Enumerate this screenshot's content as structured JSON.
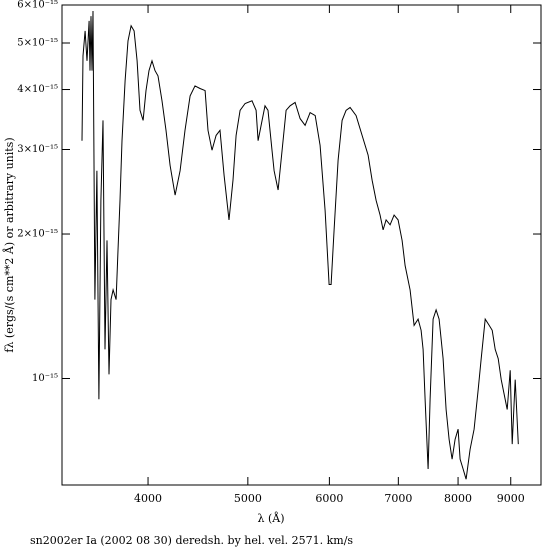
{
  "chart_data": {
    "type": "line",
    "caption": "sn2002er Ia (2002 08 30) deredsh. by hel. vel.  2571. km/s",
    "xlabel": "λ (Å)",
    "ylabel": "fλ (ergs/(s cm**2 Å) or arbitrary units)",
    "xlog": true,
    "ylog": true,
    "color": "#000000",
    "xlim": [
      3300,
      9630
    ],
    "ylim": [
      6e-16,
      6e-15
    ],
    "xticks": [
      4000,
      5000,
      6000,
      7000,
      8000,
      9000
    ],
    "yticks": [
      {
        "value": 1e-15,
        "label": "10⁻¹⁵"
      },
      {
        "value": 2e-15,
        "label": "2×10⁻¹⁵"
      },
      {
        "value": 3e-15,
        "label": "3×10⁻¹⁵"
      },
      {
        "value": 4e-15,
        "label": "4×10⁻¹⁵"
      },
      {
        "value": 5e-15,
        "label": "5×10⁻¹⁵"
      },
      {
        "value": 6e-15,
        "label": "6×10⁻¹⁵"
      }
    ],
    "x": [
      3451,
      3459,
      3475,
      3490,
      3506,
      3513,
      3521,
      3529,
      3537,
      3552,
      3568,
      3584,
      3600,
      3617,
      3633,
      3649,
      3666,
      3682,
      3699,
      3724,
      3740,
      3757,
      3774,
      3800,
      3825,
      3851,
      3877,
      3903,
      3929,
      3956,
      3982,
      4009,
      4036,
      4063,
      4090,
      4127,
      4164,
      4202,
      4249,
      4297,
      4345,
      4394,
      4443,
      4493,
      4544,
      4574,
      4615,
      4657,
      4698,
      4741,
      4794,
      4837,
      4870,
      4914,
      4969,
      5047,
      5093,
      5116,
      5162,
      5196,
      5231,
      5278,
      5302,
      5350,
      5398,
      5446,
      5495,
      5557,
      5620,
      5683,
      5747,
      5812,
      5877,
      5943,
      5996,
      6023,
      6064,
      6118,
      6173,
      6229,
      6284,
      6369,
      6455,
      6542,
      6601,
      6660,
      6720,
      6765,
      6811,
      6872,
      6934,
      6996,
      7059,
      7106,
      7186,
      7251,
      7316,
      7365,
      7398,
      7431,
      7482,
      7515,
      7566,
      7617,
      7668,
      7737,
      7789,
      7841,
      7894,
      7948,
      8001,
      8037,
      8091,
      8146,
      8219,
      8293,
      8368,
      8424,
      8500,
      8576,
      8634,
      8692,
      8751,
      8810,
      8870,
      8930,
      8990,
      9030,
      9091,
      9153
    ],
    "values": [
      3.13e-15,
      4.7e-15,
      5.3e-15,
      4.59e-15,
      5.56e-15,
      4.38e-15,
      5.69e-15,
      4.38e-15,
      5.83e-15,
      1.46e-15,
      2.71e-15,
      9.05e-16,
      2.35e-15,
      3.45e-15,
      1.15e-15,
      1.94e-15,
      1.02e-15,
      1.46e-15,
      1.53e-15,
      1.46e-15,
      1.85e-15,
      2.35e-15,
      3.13e-15,
      4.17e-15,
      5.05e-15,
      5.43e-15,
      5.3e-15,
      4.59e-15,
      3.62e-15,
      3.45e-15,
      3.98e-15,
      4.38e-15,
      4.59e-15,
      4.38e-15,
      4.27e-15,
      3.79e-15,
      3.29e-15,
      2.78e-15,
      2.41e-15,
      2.71e-15,
      3.29e-15,
      3.88e-15,
      4.07e-15,
      4.02e-15,
      3.98e-15,
      3.29e-15,
      2.99e-15,
      3.21e-15,
      3.29e-15,
      2.65e-15,
      2.14e-15,
      2.59e-15,
      3.21e-15,
      3.62e-15,
      3.74e-15,
      3.79e-15,
      3.62e-15,
      3.13e-15,
      3.45e-15,
      3.7e-15,
      3.62e-15,
      2.99e-15,
      2.71e-15,
      2.47e-15,
      2.99e-15,
      3.62e-15,
      3.7e-15,
      3.76e-15,
      3.48e-15,
      3.37e-15,
      3.58e-15,
      3.53e-15,
      3.06e-15,
      2.24e-15,
      1.57e-15,
      1.57e-15,
      2.04e-15,
      2.85e-15,
      3.45e-15,
      3.62e-15,
      3.67e-15,
      3.53e-15,
      3.21e-15,
      2.92e-15,
      2.59e-15,
      2.35e-15,
      2.19e-15,
      2.04e-15,
      2.14e-15,
      2.09e-15,
      2.19e-15,
      2.14e-15,
      1.94e-15,
      1.72e-15,
      1.53e-15,
      1.29e-15,
      1.33e-15,
      1.26e-15,
      1.15e-15,
      9.05e-16,
      6.48e-16,
      9.05e-16,
      1.33e-15,
      1.39e-15,
      1.33e-15,
      1.1e-15,
      8.62e-16,
      7.47e-16,
      6.79e-16,
      7.47e-16,
      7.84e-16,
      6.79e-16,
      6.48e-16,
      6.17e-16,
      7.12e-16,
      7.84e-16,
      9.49e-16,
      1.1e-15,
      1.33e-15,
      1.29e-15,
      1.26e-15,
      1.15e-15,
      1.1e-15,
      9.95e-16,
      9.26e-16,
      8.62e-16,
      1.04e-15,
      7.3e-16,
      9.95e-16,
      7.3e-16
    ]
  }
}
